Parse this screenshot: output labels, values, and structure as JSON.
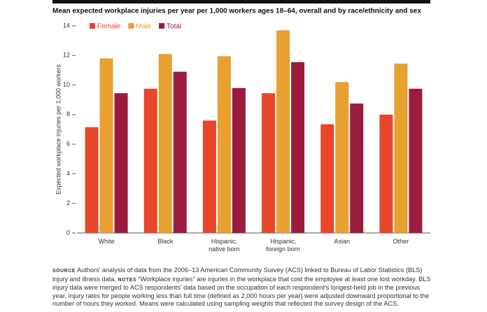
{
  "chart_data": {
    "type": "bar",
    "title": "Mean expected workplace injuries per year per 1,000 workers ages 18–64, overall and by race/ethnicity and sex",
    "y_label": "Expected workplace injuries per 1,000 workers",
    "categories": [
      "White",
      "Black",
      "Hispanic,\nnative born",
      "Hispanic,\nforeign born",
      "Asian",
      "Other"
    ],
    "series": [
      {
        "name": "Female",
        "color": "#e8462a",
        "values": [
          7.15,
          9.75,
          7.6,
          9.45,
          7.35,
          8.0
        ]
      },
      {
        "name": "Male",
        "color": "#e8a030",
        "values": [
          11.8,
          12.1,
          11.95,
          13.7,
          10.2,
          11.45
        ]
      },
      {
        "name": "Total",
        "color": "#9b1b3e",
        "values": [
          9.45,
          10.9,
          9.8,
          11.55,
          8.75,
          9.75
        ]
      }
    ],
    "ylim": [
      0,
      14
    ],
    "yticks": [
      0,
      2,
      4,
      6,
      8,
      10,
      12,
      14
    ],
    "grid": false,
    "legend": "top"
  },
  "notes": {
    "source_label": "SOURCE",
    "source_text": "Authors’ analysis of data from the 2006–13 American Community Survey (ACS) linked to Bureau of Labor Statistics (BLS) injury and illness data.",
    "notes_label": "NOTES",
    "notes_text": "“Workplace injuries” are injuries in the workplace that cost the employee at least one lost workday. BLS injury data were merged to ACS respondents’ data based on the occupation of each respondent’s longest-held job in the previous year. Injury rates for people working less than full time (defined as 2,000 hours per year) were adjusted downward proportional to the number of hours they worked. Means were calculated using sampling weights that reflected the survey design of the ACS."
  }
}
